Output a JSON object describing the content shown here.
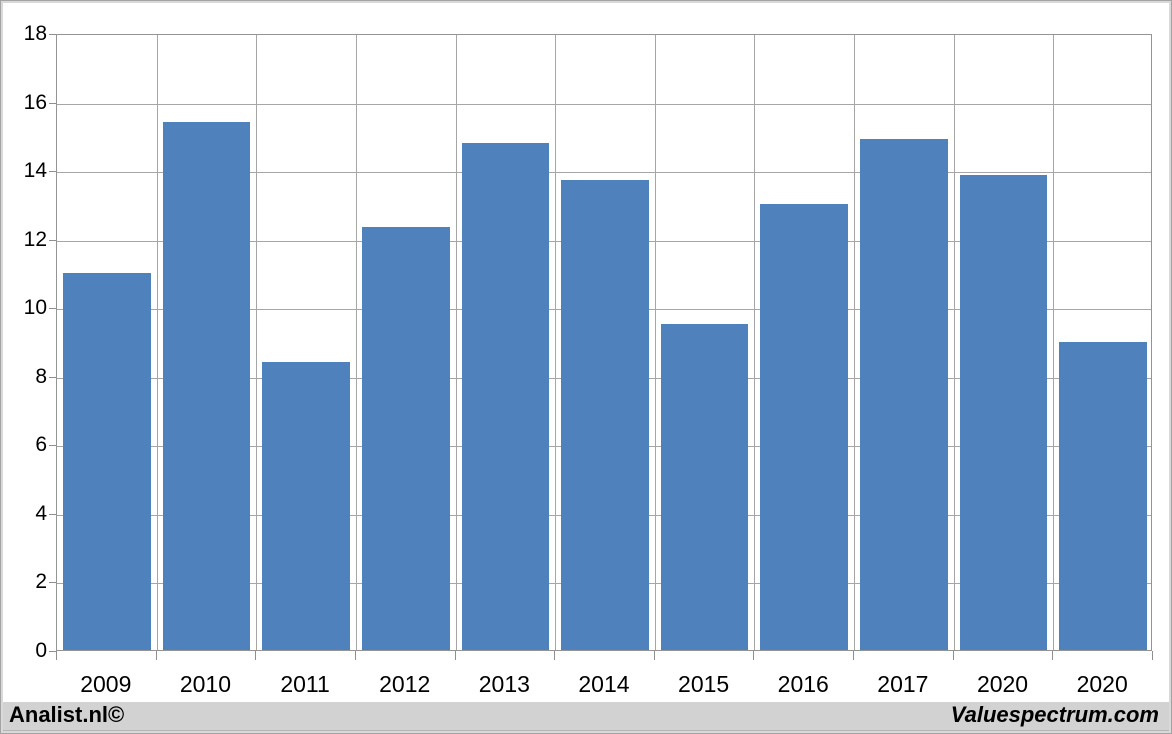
{
  "chart_data": {
    "type": "bar",
    "title": "",
    "xlabel": "",
    "ylabel": "",
    "categories": [
      "2009",
      "2010",
      "2011",
      "2012",
      "2013",
      "2014",
      "2015",
      "2016",
      "2017",
      "2020",
      "2020"
    ],
    "values": [
      11.0,
      15.4,
      8.4,
      12.35,
      14.8,
      13.7,
      9.5,
      13.0,
      14.9,
      13.85,
      9.0
    ],
    "ylim": [
      0,
      18
    ],
    "ytick_step": 2,
    "grid": true,
    "legend": false,
    "bar_color": "#4f81bd",
    "gridline_color": "#a6a6a6",
    "axis_color": "#949494",
    "plot_background": "#ffffff"
  },
  "footer": {
    "left_label": "Analist.nl©",
    "right_label": "Valuespectrum.com",
    "background_color": "#d2d2d2"
  }
}
